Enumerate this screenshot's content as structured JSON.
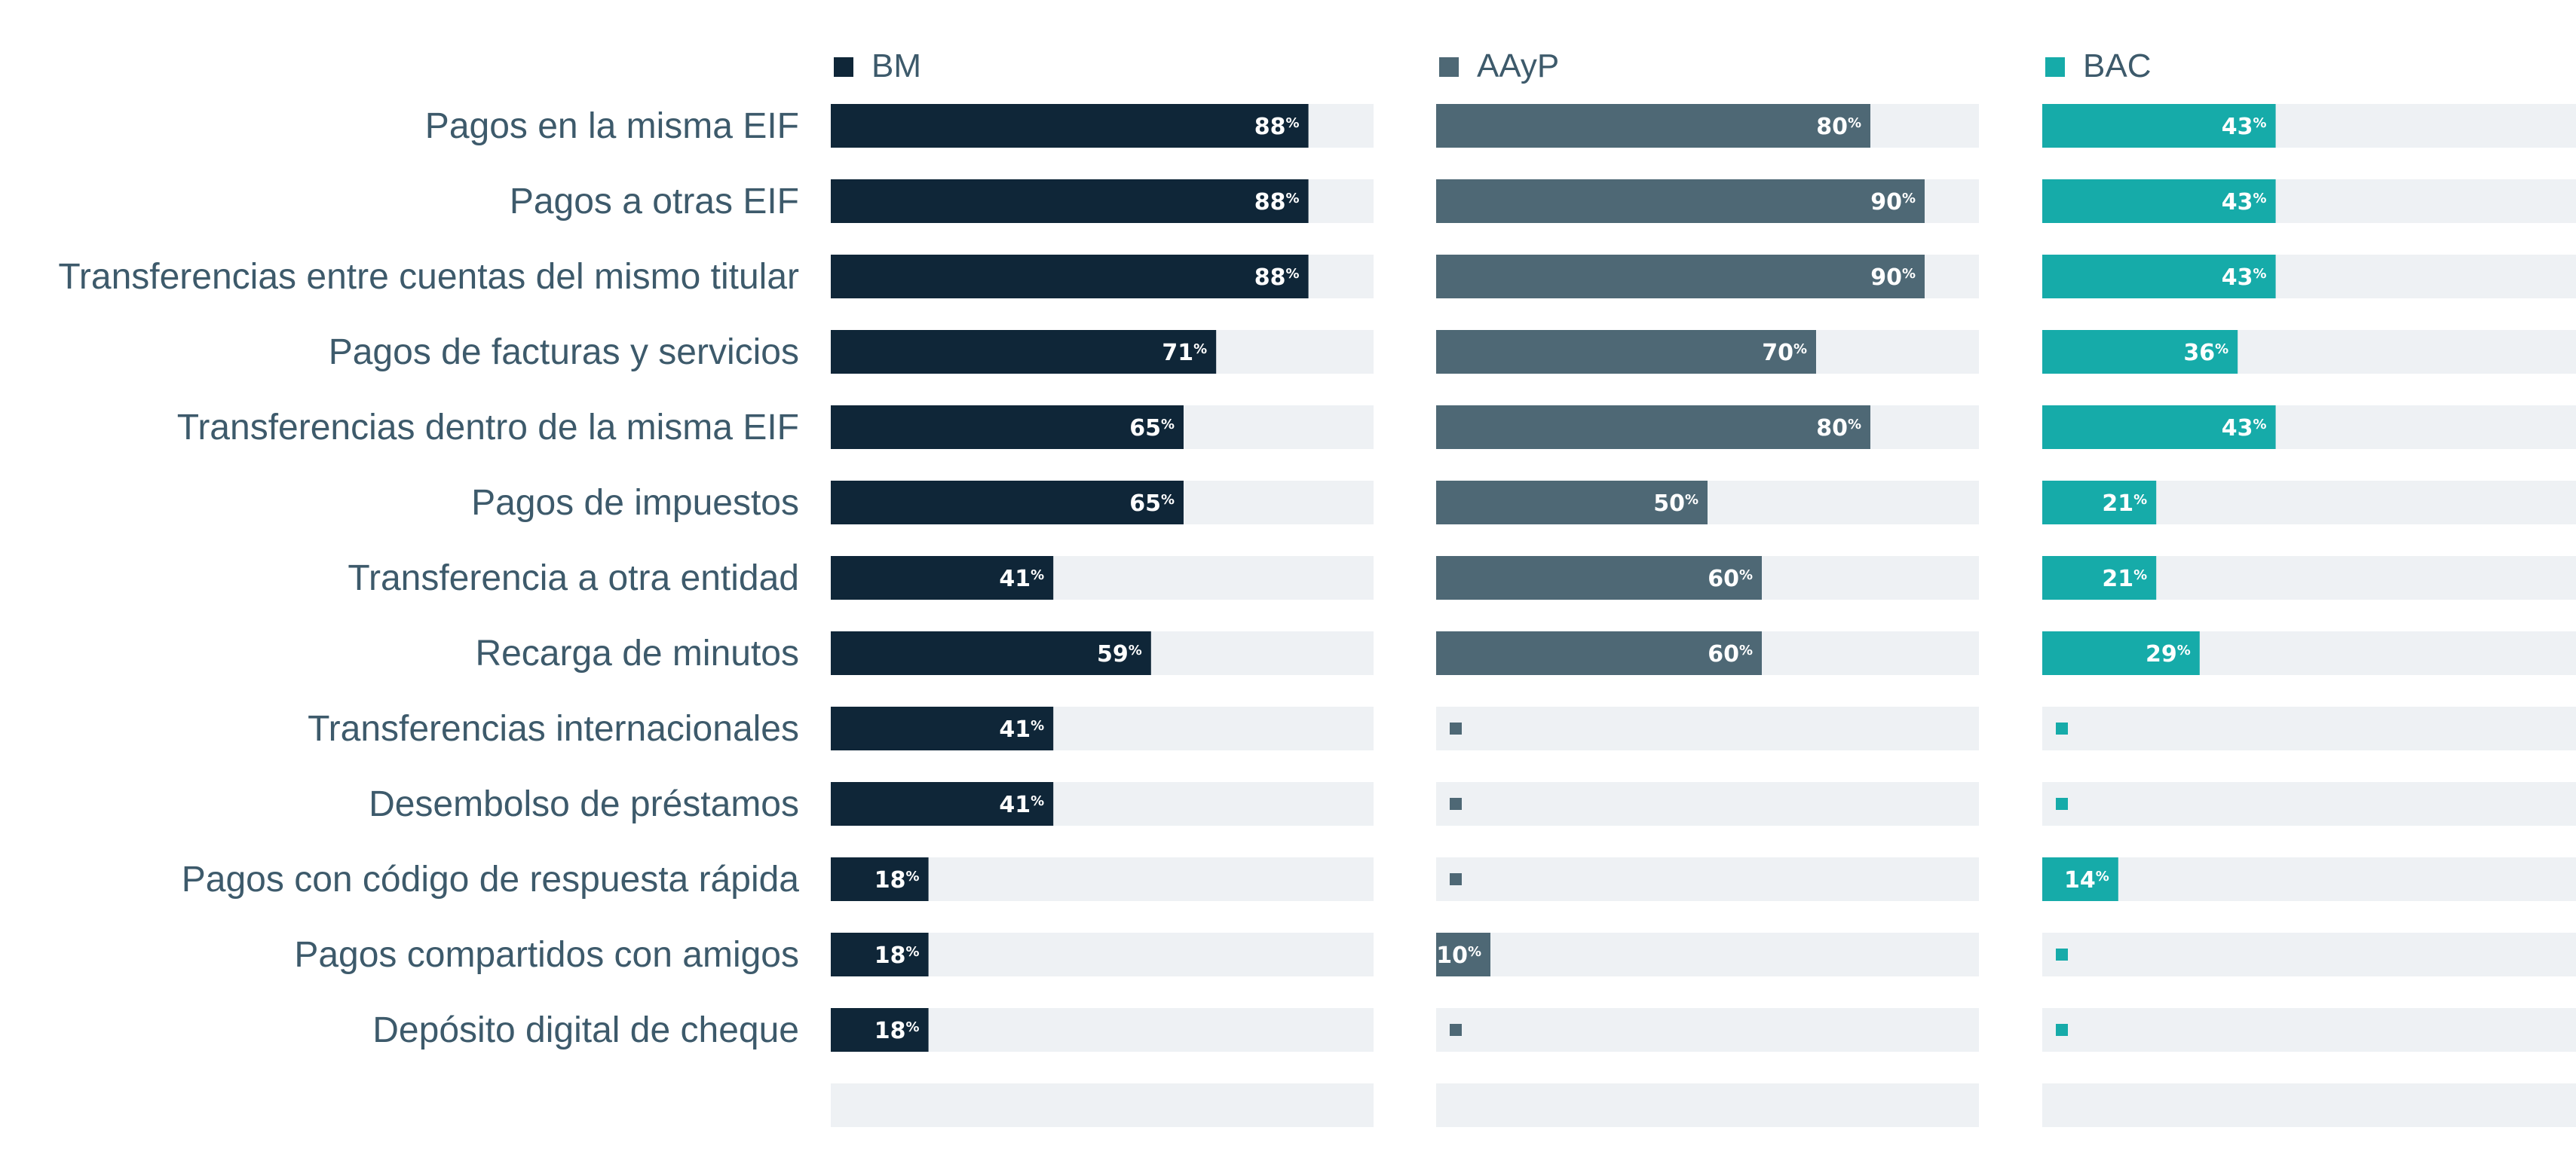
{
  "chart_data": {
    "type": "bar",
    "orientation": "horizontal",
    "layout": "small-multiples",
    "xlim": [
      0,
      100
    ],
    "value_suffix": "%",
    "categories": [
      "Pagos en la misma EIF",
      "Pagos a otras EIF",
      "Transferencias entre cuentas del mismo titular",
      "Pagos de facturas y servicios",
      "Transferencias dentro de la misma EIF",
      "Pagos de impuestos",
      "Transferencia a otra entidad",
      "Recarga de minutos",
      "Transferencias internacionales",
      "Desembolso de préstamos",
      "Pagos con código de respuesta rápida",
      "Pagos compartidos con amigos",
      "Depósito digital de cheque"
    ],
    "series": [
      {
        "name": "BM",
        "color": "#0f2638",
        "values": [
          88,
          88,
          88,
          71,
          65,
          65,
          41,
          59,
          41,
          41,
          18,
          18,
          18
        ]
      },
      {
        "name": "AAyP",
        "color": "#4e6875",
        "values": [
          80,
          90,
          90,
          70,
          80,
          50,
          60,
          60,
          null,
          null,
          null,
          10,
          null
        ]
      },
      {
        "name": "BAC",
        "color": "#16aba9",
        "values": [
          43,
          43,
          43,
          36,
          43,
          21,
          21,
          29,
          null,
          null,
          14,
          null,
          null
        ]
      }
    ],
    "track_color": "#eef1f4",
    "legend_position": "top",
    "grid": false
  }
}
